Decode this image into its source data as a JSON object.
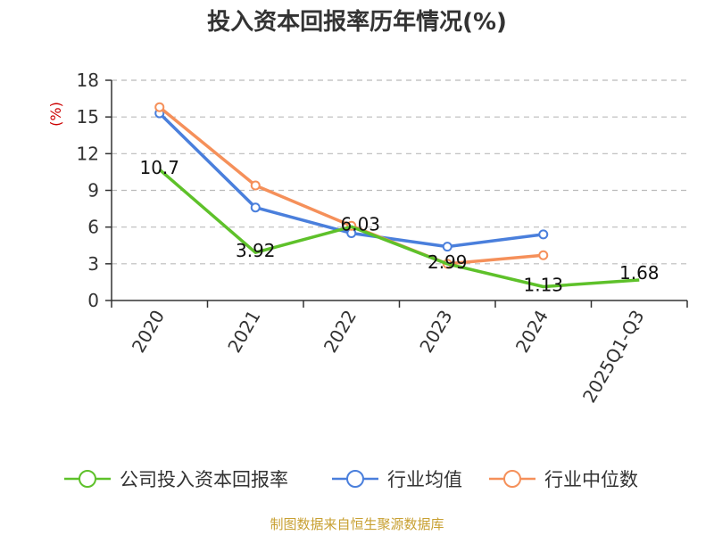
{
  "chart_data": {
    "type": "line",
    "title": "投入资本回报率历年情况(%)",
    "ylabel": "(%)",
    "xlabel": "",
    "categories": [
      "2020",
      "2021",
      "2022",
      "2023",
      "2024",
      "2025Q1-Q3"
    ],
    "ylim": [
      0,
      18
    ],
    "yticks": [
      0,
      3,
      6,
      9,
      12,
      15,
      18
    ],
    "grid": true,
    "legend_position": "bottom",
    "series": [
      {
        "name": "公司投入资本回报率",
        "color": "#5ec12a",
        "values": [
          10.7,
          3.92,
          6.03,
          2.99,
          1.13,
          1.68
        ],
        "labels": [
          "10.7",
          "3.92",
          "6.03",
          "2.99",
          "1.13",
          "1.68"
        ]
      },
      {
        "name": "行业均值",
        "color": "#4a7fdc",
        "values": [
          15.3,
          7.6,
          5.5,
          4.4,
          5.4,
          null
        ]
      },
      {
        "name": "行业中位数",
        "color": "#f5905a",
        "values": [
          15.8,
          9.4,
          6.1,
          3.0,
          3.7,
          null
        ]
      }
    ]
  },
  "source": "制图数据来自恒生聚源数据库"
}
